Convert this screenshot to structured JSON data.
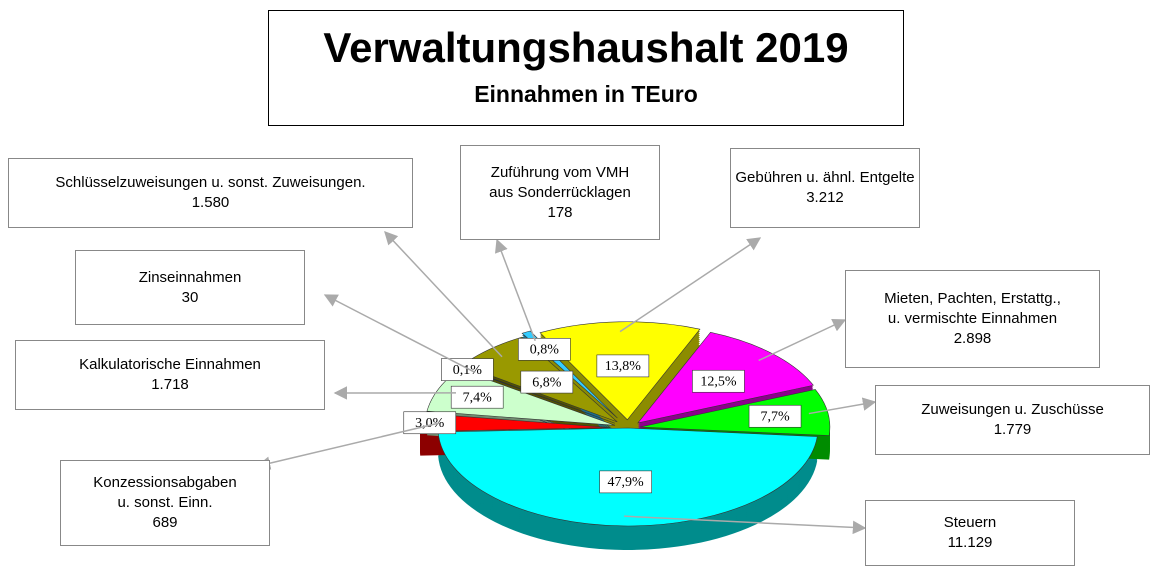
{
  "chart_data": {
    "type": "pie",
    "title": "Verwaltungshaushalt 2019",
    "subtitle": "Einnahmen in TEuro",
    "categories": [
      "Steuern",
      "Konzessionsabgaben\nu. sonst. Einn.",
      "Kalkulatorische Einnahmen",
      "Zinseinnahmen",
      "Schlüsselzuweisungen u. sonst. Zuweisungen.",
      "Zuführung vom VMH\naus Sonderrücklagen",
      "Gebühren u. ähnl. Entgelte",
      "Mieten, Pachten, Erstattg.,\nu. vermischte  Einnahmen",
      "Zuweisungen u. Zuschüsse"
    ],
    "values": [
      11129,
      689,
      1718,
      30,
      1580,
      178,
      3212,
      2898,
      1779
    ],
    "value_labels": [
      "11.129",
      "689",
      "1.718",
      "30",
      "1.580",
      "178",
      "3.212",
      "2.898",
      "1.779"
    ],
    "percent_labels": [
      "47,9%",
      "3,0%",
      "7,4%",
      "0,1%",
      "6,8%",
      "0,8%",
      "13,8%",
      "12,5%",
      "7,7%"
    ],
    "colors": [
      "#00ffff",
      "#ff0000",
      "#ccffcc",
      "#000080",
      "#999900",
      "#33ccff",
      "#ffff00",
      "#ff00ff",
      "#00ff00"
    ]
  }
}
